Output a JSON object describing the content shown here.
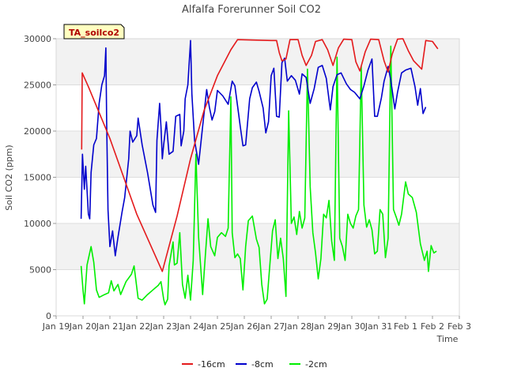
{
  "chart_data": {
    "type": "line",
    "title": "Alfalfa Forerunner Soil CO2",
    "xlabel": "Time",
    "ylabel": "Soil CO2 (ppm)",
    "annotation": "TA_soilco2",
    "x_is_day_offset_from": "Jan 19",
    "xlim": [
      0,
      15
    ],
    "ylim": [
      0,
      30000
    ],
    "yticks": [
      0,
      5000,
      10000,
      15000,
      20000,
      25000,
      30000
    ],
    "xtick_labels": [
      "Jan 19",
      "Jan 20",
      "Jan 21",
      "Jan 22",
      "Jan 23",
      "Jan 24",
      "Jan 25",
      "Jan 26",
      "Jan 27",
      "Jan 28",
      "Jan 29",
      "Jan 30",
      "Jan 31",
      "Feb 1",
      "Feb 2",
      "Feb 3"
    ],
    "grid": "horizontal bands",
    "legend_position": "bottom",
    "series": [
      {
        "name": "-16cm",
        "color": "#e41a1c",
        "points": [
          [
            0.95,
            18000
          ],
          [
            0.97,
            26300
          ],
          [
            1.2,
            24800
          ],
          [
            2.0,
            19200
          ],
          [
            3.0,
            11000
          ],
          [
            3.95,
            4800
          ],
          [
            4.5,
            10800
          ],
          [
            5.0,
            17000
          ],
          [
            5.5,
            22200
          ],
          [
            6.0,
            26000
          ],
          [
            6.5,
            28800
          ],
          [
            6.75,
            29900
          ],
          [
            8.0,
            29800
          ],
          [
            8.2,
            29800
          ],
          [
            8.3,
            28500
          ],
          [
            8.4,
            27600
          ],
          [
            8.55,
            27800
          ],
          [
            8.7,
            29900
          ],
          [
            9.0,
            29900
          ],
          [
            9.15,
            28200
          ],
          [
            9.3,
            27100
          ],
          [
            9.5,
            28200
          ],
          [
            9.65,
            29700
          ],
          [
            9.9,
            29900
          ],
          [
            10.1,
            28800
          ],
          [
            10.3,
            27100
          ],
          [
            10.5,
            29000
          ],
          [
            10.7,
            29950
          ],
          [
            11.0,
            29900
          ],
          [
            11.15,
            27500
          ],
          [
            11.3,
            26500
          ],
          [
            11.5,
            28600
          ],
          [
            11.7,
            29950
          ],
          [
            12.0,
            29900
          ],
          [
            12.2,
            27600
          ],
          [
            12.35,
            26400
          ],
          [
            12.5,
            28300
          ],
          [
            12.7,
            29950
          ],
          [
            12.9,
            30000
          ],
          [
            13.1,
            28700
          ],
          [
            13.3,
            27600
          ],
          [
            13.6,
            26700
          ],
          [
            13.75,
            29800
          ],
          [
            14.0,
            29700
          ],
          [
            14.2,
            28900
          ]
        ]
      },
      {
        "name": "-8cm",
        "color": "#0000cc",
        "points": [
          [
            0.93,
            10500
          ],
          [
            0.98,
            17500
          ],
          [
            1.05,
            13700
          ],
          [
            1.1,
            16200
          ],
          [
            1.2,
            11000
          ],
          [
            1.25,
            10500
          ],
          [
            1.3,
            15500
          ],
          [
            1.4,
            18500
          ],
          [
            1.5,
            19200
          ],
          [
            1.6,
            23000
          ],
          [
            1.7,
            25000
          ],
          [
            1.8,
            26000
          ],
          [
            1.85,
            29000
          ],
          [
            1.88,
            21000
          ],
          [
            1.93,
            11500
          ],
          [
            2.0,
            7500
          ],
          [
            2.1,
            9200
          ],
          [
            2.2,
            6500
          ],
          [
            2.3,
            8500
          ],
          [
            2.45,
            11200
          ],
          [
            2.55,
            12800
          ],
          [
            2.7,
            17000
          ],
          [
            2.75,
            20000
          ],
          [
            2.85,
            18800
          ],
          [
            3.0,
            19500
          ],
          [
            3.05,
            21400
          ],
          [
            3.2,
            18500
          ],
          [
            3.4,
            15500
          ],
          [
            3.6,
            12000
          ],
          [
            3.7,
            11200
          ],
          [
            3.75,
            19000
          ],
          [
            3.85,
            23000
          ],
          [
            3.9,
            20500
          ],
          [
            3.95,
            17000
          ],
          [
            4.0,
            18500
          ],
          [
            4.1,
            21000
          ],
          [
            4.2,
            17500
          ],
          [
            4.35,
            17800
          ],
          [
            4.45,
            21600
          ],
          [
            4.6,
            21800
          ],
          [
            4.65,
            18400
          ],
          [
            4.75,
            20000
          ],
          [
            4.8,
            23500
          ],
          [
            4.9,
            25000
          ],
          [
            5.0,
            29800
          ],
          [
            5.05,
            24000
          ],
          [
            5.15,
            19000
          ],
          [
            5.3,
            16400
          ],
          [
            5.45,
            20500
          ],
          [
            5.6,
            24500
          ],
          [
            5.7,
            22600
          ],
          [
            5.8,
            21200
          ],
          [
            5.9,
            22100
          ],
          [
            6.0,
            24400
          ],
          [
            6.2,
            23800
          ],
          [
            6.4,
            22900
          ],
          [
            6.55,
            25400
          ],
          [
            6.65,
            24900
          ],
          [
            6.75,
            22700
          ],
          [
            6.85,
            20500
          ],
          [
            6.95,
            18400
          ],
          [
            7.05,
            18500
          ],
          [
            7.2,
            23500
          ],
          [
            7.3,
            24700
          ],
          [
            7.45,
            25300
          ],
          [
            7.55,
            24300
          ],
          [
            7.7,
            22500
          ],
          [
            7.8,
            19800
          ],
          [
            7.9,
            21000
          ],
          [
            8.0,
            26000
          ],
          [
            8.1,
            26800
          ],
          [
            8.2,
            21600
          ],
          [
            8.3,
            21500
          ],
          [
            8.4,
            27400
          ],
          [
            8.5,
            27900
          ],
          [
            8.6,
            25400
          ],
          [
            8.75,
            26000
          ],
          [
            8.9,
            25500
          ],
          [
            9.05,
            24000
          ],
          [
            9.15,
            26200
          ],
          [
            9.3,
            25800
          ],
          [
            9.45,
            23000
          ],
          [
            9.6,
            24600
          ],
          [
            9.75,
            26900
          ],
          [
            9.9,
            27100
          ],
          [
            10.05,
            25700
          ],
          [
            10.2,
            22300
          ],
          [
            10.3,
            24800
          ],
          [
            10.45,
            26100
          ],
          [
            10.6,
            26300
          ],
          [
            10.8,
            25100
          ],
          [
            10.95,
            24500
          ],
          [
            11.1,
            24200
          ],
          [
            11.3,
            23500
          ],
          [
            11.45,
            24900
          ],
          [
            11.6,
            26600
          ],
          [
            11.75,
            27800
          ],
          [
            11.85,
            21600
          ],
          [
            11.95,
            21600
          ],
          [
            12.1,
            23600
          ],
          [
            12.2,
            25400
          ],
          [
            12.35,
            27000
          ],
          [
            12.45,
            25500
          ],
          [
            12.6,
            22400
          ],
          [
            12.7,
            24200
          ],
          [
            12.85,
            26300
          ],
          [
            13.0,
            26600
          ],
          [
            13.2,
            26800
          ],
          [
            13.35,
            24800
          ],
          [
            13.45,
            22800
          ],
          [
            13.55,
            24600
          ],
          [
            13.65,
            21900
          ],
          [
            13.75,
            22600
          ]
        ]
      },
      {
        "name": "-2cm",
        "color": "#00ee00",
        "points": [
          [
            0.93,
            5400
          ],
          [
            1.0,
            2800
          ],
          [
            1.05,
            1300
          ],
          [
            1.15,
            5500
          ],
          [
            1.3,
            7500
          ],
          [
            1.4,
            5800
          ],
          [
            1.5,
            2800
          ],
          [
            1.6,
            2000
          ],
          [
            1.8,
            2300
          ],
          [
            1.95,
            2500
          ],
          [
            2.05,
            3800
          ],
          [
            2.15,
            2700
          ],
          [
            2.3,
            3400
          ],
          [
            2.4,
            2300
          ],
          [
            2.6,
            3700
          ],
          [
            2.8,
            4500
          ],
          [
            2.9,
            5400
          ],
          [
            3.05,
            1900
          ],
          [
            3.2,
            1700
          ],
          [
            3.4,
            2300
          ],
          [
            3.6,
            2800
          ],
          [
            3.8,
            3300
          ],
          [
            3.9,
            3700
          ],
          [
            4.0,
            1800
          ],
          [
            4.05,
            1200
          ],
          [
            4.15,
            1800
          ],
          [
            4.2,
            5400
          ],
          [
            4.35,
            8000
          ],
          [
            4.4,
            5500
          ],
          [
            4.5,
            5700
          ],
          [
            4.6,
            9000
          ],
          [
            4.7,
            3400
          ],
          [
            4.8,
            1900
          ],
          [
            4.9,
            4400
          ],
          [
            5.0,
            1700
          ],
          [
            5.1,
            6000
          ],
          [
            5.2,
            17500
          ],
          [
            5.3,
            8500
          ],
          [
            5.45,
            2300
          ],
          [
            5.55,
            6500
          ],
          [
            5.65,
            10500
          ],
          [
            5.75,
            7500
          ],
          [
            5.9,
            6500
          ],
          [
            6.0,
            8500
          ],
          [
            6.15,
            9000
          ],
          [
            6.3,
            8600
          ],
          [
            6.4,
            9500
          ],
          [
            6.5,
            23700
          ],
          [
            6.55,
            9000
          ],
          [
            6.65,
            6300
          ],
          [
            6.75,
            6700
          ],
          [
            6.85,
            6200
          ],
          [
            6.95,
            2800
          ],
          [
            7.05,
            7500
          ],
          [
            7.15,
            10300
          ],
          [
            7.3,
            10800
          ],
          [
            7.45,
            8300
          ],
          [
            7.55,
            7400
          ],
          [
            7.65,
            3400
          ],
          [
            7.75,
            1300
          ],
          [
            7.85,
            1800
          ],
          [
            7.95,
            5500
          ],
          [
            8.05,
            9200
          ],
          [
            8.15,
            10400
          ],
          [
            8.25,
            6200
          ],
          [
            8.35,
            8400
          ],
          [
            8.45,
            6200
          ],
          [
            8.55,
            2100
          ],
          [
            8.65,
            22200
          ],
          [
            8.75,
            10000
          ],
          [
            8.85,
            10700
          ],
          [
            8.95,
            8800
          ],
          [
            9.05,
            11300
          ],
          [
            9.15,
            9500
          ],
          [
            9.25,
            10600
          ],
          [
            9.35,
            26700
          ],
          [
            9.45,
            14000
          ],
          [
            9.55,
            9000
          ],
          [
            9.65,
            6800
          ],
          [
            9.75,
            4000
          ],
          [
            9.85,
            6200
          ],
          [
            9.95,
            11000
          ],
          [
            10.05,
            10600
          ],
          [
            10.15,
            12500
          ],
          [
            10.25,
            8100
          ],
          [
            10.35,
            6000
          ],
          [
            10.45,
            28000
          ],
          [
            10.55,
            8400
          ],
          [
            10.65,
            7500
          ],
          [
            10.75,
            6000
          ],
          [
            10.85,
            11000
          ],
          [
            10.95,
            10000
          ],
          [
            11.05,
            9500
          ],
          [
            11.15,
            10800
          ],
          [
            11.25,
            11500
          ],
          [
            11.35,
            27000
          ],
          [
            11.45,
            12000
          ],
          [
            11.55,
            9600
          ],
          [
            11.65,
            10400
          ],
          [
            11.75,
            9300
          ],
          [
            11.85,
            6700
          ],
          [
            11.95,
            7000
          ],
          [
            12.05,
            11500
          ],
          [
            12.15,
            11000
          ],
          [
            12.25,
            6300
          ],
          [
            12.35,
            8400
          ],
          [
            12.45,
            29200
          ],
          [
            12.55,
            11500
          ],
          [
            12.65,
            10700
          ],
          [
            12.75,
            9800
          ],
          [
            12.85,
            11000
          ],
          [
            13.0,
            14500
          ],
          [
            13.1,
            13200
          ],
          [
            13.25,
            12800
          ],
          [
            13.4,
            11200
          ],
          [
            13.55,
            7800
          ],
          [
            13.7,
            6000
          ],
          [
            13.8,
            7000
          ],
          [
            13.85,
            4800
          ],
          [
            13.95,
            7600
          ],
          [
            14.05,
            6800
          ],
          [
            14.15,
            7000
          ]
        ]
      }
    ]
  }
}
